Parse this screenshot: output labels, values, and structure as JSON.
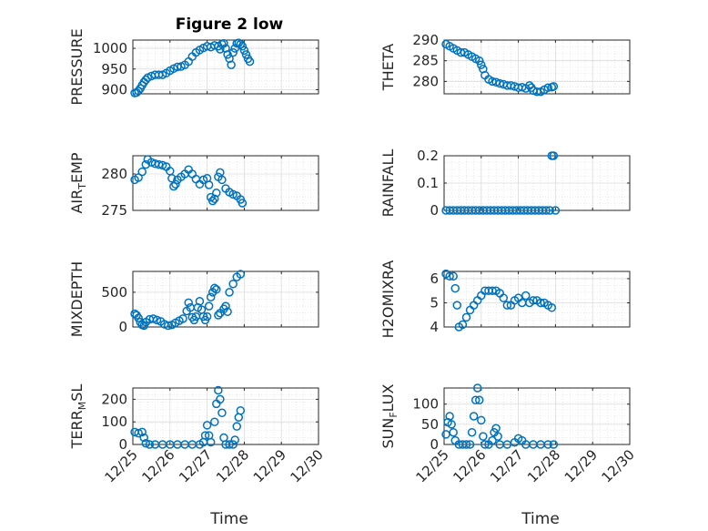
{
  "figure_title": "Figure 2 low",
  "xlabel": "Time",
  "x_tick_labels": [
    "12/25",
    "12/26",
    "12/27",
    "12/28",
    "12/29",
    "12/30"
  ],
  "marker_color": "#0072BD",
  "chart_data": [
    {
      "type": "scatter",
      "ylabel": "PRESSURE",
      "ylim": [
        890,
        1020
      ],
      "yticks": [
        900,
        950,
        1000
      ],
      "xlim": [
        0,
        5
      ],
      "grid": true,
      "points": [
        [
          0.05,
          892
        ],
        [
          0.1,
          893
        ],
        [
          0.15,
          897
        ],
        [
          0.2,
          903
        ],
        [
          0.25,
          911
        ],
        [
          0.3,
          918
        ],
        [
          0.35,
          924
        ],
        [
          0.4,
          929
        ],
        [
          0.5,
          933
        ],
        [
          0.6,
          936
        ],
        [
          0.7,
          936
        ],
        [
          0.8,
          936
        ],
        [
          0.9,
          940
        ],
        [
          1.0,
          946
        ],
        [
          1.1,
          951
        ],
        [
          1.2,
          955
        ],
        [
          1.3,
          956
        ],
        [
          1.4,
          960
        ],
        [
          1.5,
          968
        ],
        [
          1.6,
          980
        ],
        [
          1.7,
          990
        ],
        [
          1.8,
          996
        ],
        [
          1.9,
          1001
        ],
        [
          2.0,
          1005
        ],
        [
          2.1,
          1003
        ],
        [
          2.2,
          1007
        ],
        [
          2.3,
          1005
        ],
        [
          2.35,
          998
        ],
        [
          2.4,
          1010
        ],
        [
          2.45,
          1012
        ],
        [
          2.5,
          1000
        ],
        [
          2.55,
          985
        ],
        [
          2.6,
          975
        ],
        [
          2.65,
          960
        ],
        [
          2.7,
          990
        ],
        [
          2.75,
          1000
        ],
        [
          2.8,
          1012
        ],
        [
          2.85,
          1013
        ],
        [
          2.9,
          1010
        ],
        [
          2.95,
          1005
        ],
        [
          3.0,
          995
        ],
        [
          3.05,
          985
        ],
        [
          3.1,
          975
        ],
        [
          3.15,
          968
        ]
      ]
    },
    {
      "type": "scatter",
      "ylabel": "THETA",
      "ylim": [
        277,
        290
      ],
      "yticks": [
        280,
        285,
        290
      ],
      "xlim": [
        0,
        5
      ],
      "grid": true,
      "points": [
        [
          0.05,
          289
        ],
        [
          0.15,
          288.5
        ],
        [
          0.25,
          288
        ],
        [
          0.35,
          287.5
        ],
        [
          0.45,
          287
        ],
        [
          0.55,
          287
        ],
        [
          0.65,
          286.5
        ],
        [
          0.75,
          286
        ],
        [
          0.85,
          285.5
        ],
        [
          0.95,
          285
        ],
        [
          1.0,
          284
        ],
        [
          1.05,
          283
        ],
        [
          1.1,
          281.5
        ],
        [
          1.2,
          280.5
        ],
        [
          1.3,
          280
        ],
        [
          1.4,
          279.8
        ],
        [
          1.5,
          279.5
        ],
        [
          1.6,
          279.3
        ],
        [
          1.7,
          279
        ],
        [
          1.8,
          279
        ],
        [
          1.9,
          278.8
        ],
        [
          2.0,
          278.5
        ],
        [
          2.1,
          278.6
        ],
        [
          2.2,
          278.3
        ],
        [
          2.3,
          279
        ],
        [
          2.35,
          278.5
        ],
        [
          2.4,
          277.8
        ],
        [
          2.5,
          277.5
        ],
        [
          2.6,
          277.5
        ],
        [
          2.7,
          278
        ],
        [
          2.8,
          278.5
        ],
        [
          2.9,
          278.6
        ],
        [
          2.95,
          278.8
        ]
      ]
    },
    {
      "type": "scatter",
      "ylabel": "AIR_TEMP",
      "ylim": [
        275,
        282.5
      ],
      "yticks": [
        275,
        280
      ],
      "xlim": [
        0,
        5
      ],
      "grid": true,
      "points": [
        [
          0.05,
          279.2
        ],
        [
          0.15,
          279.5
        ],
        [
          0.25,
          280.3
        ],
        [
          0.35,
          281.3
        ],
        [
          0.4,
          282
        ],
        [
          0.5,
          281.6
        ],
        [
          0.6,
          281.4
        ],
        [
          0.7,
          281.3
        ],
        [
          0.8,
          281.2
        ],
        [
          0.9,
          281
        ],
        [
          1.0,
          280.4
        ],
        [
          1.05,
          279.4
        ],
        [
          1.1,
          278.3
        ],
        [
          1.15,
          278.6
        ],
        [
          1.2,
          279.2
        ],
        [
          1.3,
          279.6
        ],
        [
          1.4,
          280
        ],
        [
          1.5,
          280.6
        ],
        [
          1.6,
          280
        ],
        [
          1.7,
          279.3
        ],
        [
          1.8,
          278.6
        ],
        [
          1.9,
          279.2
        ],
        [
          2.0,
          279.4
        ],
        [
          2.05,
          278.5
        ],
        [
          2.1,
          276.8
        ],
        [
          2.15,
          276.3
        ],
        [
          2.2,
          276.6
        ],
        [
          2.25,
          277.4
        ],
        [
          2.3,
          279.6
        ],
        [
          2.35,
          280.2
        ],
        [
          2.4,
          279.2
        ],
        [
          2.5,
          278
        ],
        [
          2.6,
          277.5
        ],
        [
          2.7,
          277.2
        ],
        [
          2.8,
          277
        ],
        [
          2.9,
          276.5
        ],
        [
          2.95,
          276
        ]
      ]
    },
    {
      "type": "scatter",
      "ylabel": "RAINFALL",
      "ylim": [
        0,
        0.2
      ],
      "yticks": [
        0,
        0.1,
        0.2
      ],
      "xlim": [
        0,
        5
      ],
      "grid": true,
      "points": [
        [
          0.05,
          0
        ],
        [
          0.15,
          0
        ],
        [
          0.25,
          0
        ],
        [
          0.35,
          0
        ],
        [
          0.45,
          0
        ],
        [
          0.55,
          0
        ],
        [
          0.65,
          0
        ],
        [
          0.75,
          0
        ],
        [
          0.85,
          0
        ],
        [
          0.95,
          0
        ],
        [
          1.05,
          0
        ],
        [
          1.15,
          0
        ],
        [
          1.25,
          0
        ],
        [
          1.35,
          0
        ],
        [
          1.45,
          0
        ],
        [
          1.55,
          0
        ],
        [
          1.65,
          0
        ],
        [
          1.75,
          0
        ],
        [
          1.85,
          0
        ],
        [
          1.95,
          0
        ],
        [
          2.05,
          0
        ],
        [
          2.15,
          0
        ],
        [
          2.25,
          0
        ],
        [
          2.35,
          0
        ],
        [
          2.45,
          0
        ],
        [
          2.55,
          0
        ],
        [
          2.65,
          0
        ],
        [
          2.75,
          0
        ],
        [
          2.85,
          0
        ],
        [
          2.9,
          0.2
        ],
        [
          2.95,
          0.2
        ],
        [
          3.0,
          0
        ]
      ]
    },
    {
      "type": "scatter",
      "ylabel": "MIXDEPTH",
      "ylim": [
        0,
        800
      ],
      "yticks": [
        0,
        500
      ],
      "xlim": [
        0,
        5
      ],
      "grid": true,
      "points": [
        [
          0.05,
          190
        ],
        [
          0.1,
          170
        ],
        [
          0.15,
          130
        ],
        [
          0.2,
          70
        ],
        [
          0.25,
          30
        ],
        [
          0.3,
          20
        ],
        [
          0.35,
          70
        ],
        [
          0.45,
          110
        ],
        [
          0.55,
          120
        ],
        [
          0.65,
          100
        ],
        [
          0.75,
          80
        ],
        [
          0.85,
          40
        ],
        [
          0.95,
          20
        ],
        [
          1.05,
          30
        ],
        [
          1.15,
          60
        ],
        [
          1.25,
          90
        ],
        [
          1.35,
          120
        ],
        [
          1.45,
          230
        ],
        [
          1.5,
          350
        ],
        [
          1.55,
          280
        ],
        [
          1.6,
          140
        ],
        [
          1.65,
          100
        ],
        [
          1.7,
          150
        ],
        [
          1.75,
          280
        ],
        [
          1.8,
          370
        ],
        [
          1.85,
          250
        ],
        [
          1.9,
          150
        ],
        [
          1.95,
          100
        ],
        [
          2.0,
          150
        ],
        [
          2.05,
          300
        ],
        [
          2.1,
          430
        ],
        [
          2.15,
          500
        ],
        [
          2.2,
          560
        ],
        [
          2.25,
          540
        ],
        [
          2.3,
          170
        ],
        [
          2.35,
          200
        ],
        [
          2.45,
          260
        ],
        [
          2.5,
          300
        ],
        [
          2.55,
          220
        ],
        [
          2.6,
          500
        ],
        [
          2.7,
          620
        ],
        [
          2.8,
          720
        ],
        [
          2.9,
          760
        ]
      ]
    },
    {
      "type": "scatter",
      "ylabel": "H2OMIXRA",
      "ylim": [
        4,
        6.3
      ],
      "yticks": [
        4,
        5,
        6
      ],
      "xlim": [
        0,
        5
      ],
      "grid": true,
      "points": [
        [
          0.05,
          6.2
        ],
        [
          0.15,
          6.1
        ],
        [
          0.25,
          6.1
        ],
        [
          0.3,
          5.6
        ],
        [
          0.35,
          4.9
        ],
        [
          0.4,
          4
        ],
        [
          0.5,
          4.1
        ],
        [
          0.6,
          4.4
        ],
        [
          0.7,
          4.7
        ],
        [
          0.8,
          4.9
        ],
        [
          0.9,
          5.1
        ],
        [
          1.0,
          5.3
        ],
        [
          1.1,
          5.5
        ],
        [
          1.2,
          5.5
        ],
        [
          1.3,
          5.5
        ],
        [
          1.4,
          5.5
        ],
        [
          1.5,
          5.4
        ],
        [
          1.6,
          5.2
        ],
        [
          1.7,
          4.9
        ],
        [
          1.8,
          4.9
        ],
        [
          1.9,
          5.1
        ],
        [
          2.0,
          5.2
        ],
        [
          2.1,
          5
        ],
        [
          2.2,
          5.3
        ],
        [
          2.3,
          5
        ],
        [
          2.4,
          5.1
        ],
        [
          2.5,
          5.1
        ],
        [
          2.6,
          5
        ],
        [
          2.7,
          5
        ],
        [
          2.8,
          4.9
        ],
        [
          2.9,
          4.8
        ]
      ]
    },
    {
      "type": "scatter",
      "ylabel": "TERR_MSL",
      "ylim": [
        0,
        250
      ],
      "yticks": [
        0,
        100,
        200
      ],
      "xlim": [
        0,
        5
      ],
      "grid": true,
      "points": [
        [
          0.05,
          55
        ],
        [
          0.15,
          50
        ],
        [
          0.25,
          55
        ],
        [
          0.3,
          30
        ],
        [
          0.35,
          5
        ],
        [
          0.45,
          0
        ],
        [
          0.6,
          0
        ],
        [
          0.8,
          0
        ],
        [
          1.0,
          0
        ],
        [
          1.2,
          0
        ],
        [
          1.4,
          0
        ],
        [
          1.6,
          0
        ],
        [
          1.8,
          0
        ],
        [
          1.9,
          10
        ],
        [
          1.95,
          40
        ],
        [
          2.0,
          85
        ],
        [
          2.05,
          40
        ],
        [
          2.1,
          10
        ],
        [
          2.2,
          100
        ],
        [
          2.25,
          180
        ],
        [
          2.3,
          240
        ],
        [
          2.35,
          200
        ],
        [
          2.4,
          140
        ],
        [
          2.45,
          30
        ],
        [
          2.5,
          0
        ],
        [
          2.6,
          0
        ],
        [
          2.7,
          0
        ],
        [
          2.75,
          20
        ],
        [
          2.8,
          80
        ],
        [
          2.85,
          120
        ],
        [
          2.9,
          150
        ]
      ]
    },
    {
      "type": "scatter",
      "ylabel": "SUN_FLUX",
      "ylim": [
        0,
        140
      ],
      "yticks": [
        0,
        50,
        100
      ],
      "xlim": [
        0,
        5
      ],
      "grid": true,
      "points": [
        [
          0.05,
          25
        ],
        [
          0.1,
          55
        ],
        [
          0.15,
          70
        ],
        [
          0.2,
          50
        ],
        [
          0.25,
          30
        ],
        [
          0.3,
          10
        ],
        [
          0.4,
          0
        ],
        [
          0.5,
          0
        ],
        [
          0.6,
          0
        ],
        [
          0.7,
          0
        ],
        [
          0.75,
          30
        ],
        [
          0.8,
          70
        ],
        [
          0.85,
          110
        ],
        [
          0.9,
          140
        ],
        [
          0.95,
          110
        ],
        [
          1.0,
          60
        ],
        [
          1.05,
          20
        ],
        [
          1.1,
          0
        ],
        [
          1.2,
          0
        ],
        [
          1.3,
          10
        ],
        [
          1.35,
          30
        ],
        [
          1.4,
          40
        ],
        [
          1.45,
          20
        ],
        [
          1.5,
          0
        ],
        [
          1.7,
          0
        ],
        [
          1.9,
          5
        ],
        [
          2.0,
          15
        ],
        [
          2.1,
          10
        ],
        [
          2.2,
          0
        ],
        [
          2.4,
          0
        ],
        [
          2.6,
          0
        ],
        [
          2.8,
          0
        ],
        [
          2.95,
          0
        ]
      ]
    }
  ]
}
